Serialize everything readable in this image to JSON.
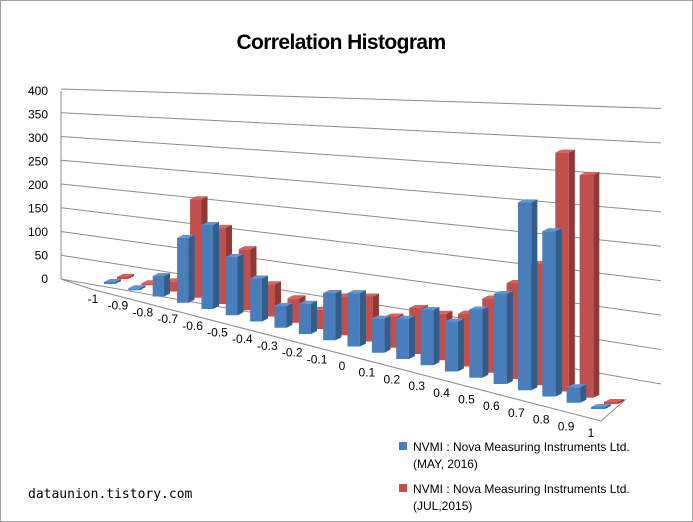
{
  "chart_data": {
    "type": "bar",
    "title": "Correlation Histogram",
    "categories": [
      "-1",
      "-0.9",
      "-0.8",
      "-0.7",
      "-0.6",
      "-0.5",
      "-0.4",
      "-0.3",
      "-0.2",
      "-0.1",
      "0",
      "0.1",
      "0.2",
      "0.3",
      "0.4",
      "0.5",
      "0.6",
      "0.7",
      "0.8",
      "0.9",
      "1"
    ],
    "y_ticks": [
      "0",
      "50",
      "100",
      "150",
      "200",
      "250",
      "300",
      "350",
      "400"
    ],
    "ylim": [
      0,
      400
    ],
    "grid": true,
    "legend_position": "bottom-right",
    "series": [
      {
        "name": "NVMI : Nova Measuring Instruments Ltd. (MAY, 2016)",
        "name_lines": [
          "NVMI : Nova Measuring Instruments Ltd.",
          "(MAY, 2016)"
        ],
        "color": "#4a7ebb",
        "values": [
          0,
          2,
          40,
          125,
          160,
          110,
          80,
          40,
          55,
          85,
          95,
          60,
          70,
          95,
          85,
          115,
          150,
          310,
          270,
          25,
          0
        ]
      },
      {
        "name": "NVMI : Nova Measuring Instruments Ltd. (JUL,2015)",
        "name_lines": [
          "NVMI : Nova Measuring Instruments Ltd.",
          "(JUL,2015)"
        ],
        "color": "#c0504d",
        "values": [
          0,
          2,
          20,
          190,
          145,
          115,
          60,
          45,
          35,
          70,
          80,
          55,
          80,
          80,
          90,
          125,
          160,
          200,
          390,
          360,
          0
        ]
      }
    ]
  },
  "watermark": "dataunion.tistory.com"
}
